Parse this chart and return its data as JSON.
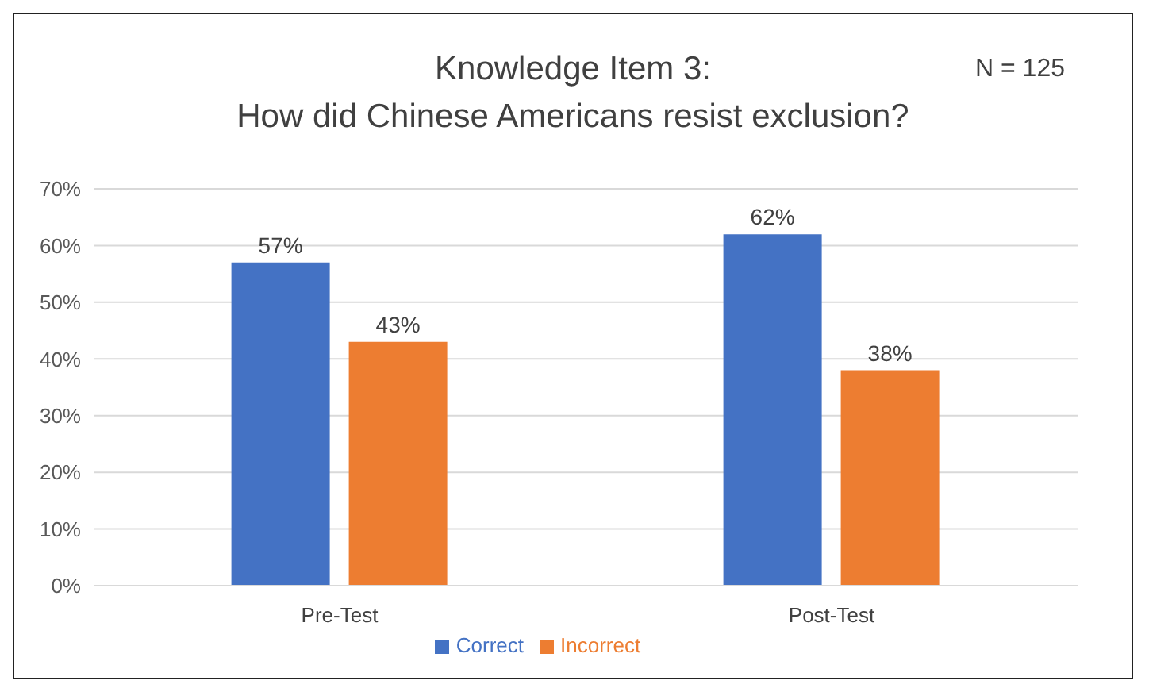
{
  "chart_data": {
    "type": "bar",
    "title": "Knowledge Item 3:\nHow did Chinese Americans resist exclusion?",
    "annotations": [
      "N = 125"
    ],
    "categories": [
      "Pre-Test",
      "Post-Test"
    ],
    "series": [
      {
        "name": "Correct",
        "color": "#4472c4",
        "values": [
          57,
          62
        ],
        "value_labels": [
          "57%",
          "62%"
        ]
      },
      {
        "name": "Incorrect",
        "color": "#ed7d31",
        "values": [
          43,
          38
        ],
        "value_labels": [
          "43%",
          "38%"
        ]
      }
    ],
    "ylim": [
      0,
      70
    ],
    "yticks": [
      {
        "value": 0,
        "label": "0%"
      },
      {
        "value": 10,
        "label": "10%"
      },
      {
        "value": 20,
        "label": "20%"
      },
      {
        "value": 30,
        "label": "30%"
      },
      {
        "value": 40,
        "label": "40%"
      },
      {
        "value": 50,
        "label": "50%"
      },
      {
        "value": 60,
        "label": "60%"
      },
      {
        "value": 70,
        "label": "70%"
      }
    ],
    "grid": "y",
    "legend": "bottom"
  }
}
